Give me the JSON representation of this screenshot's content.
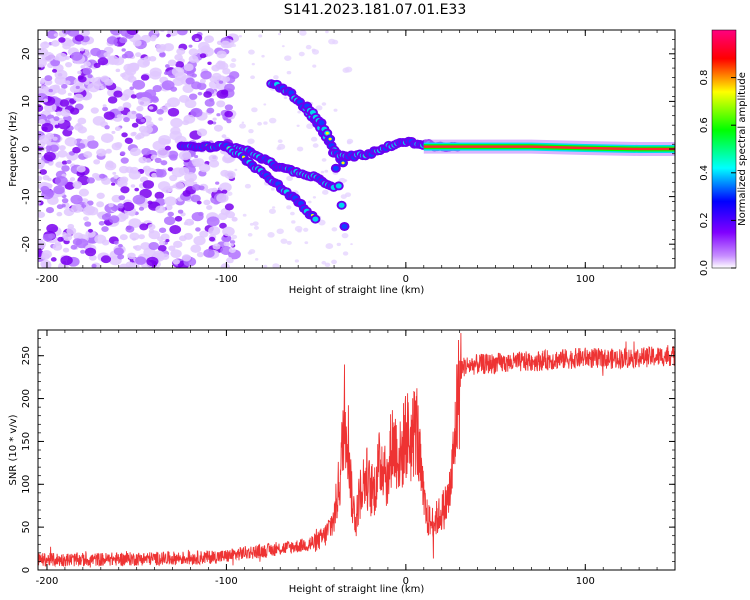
{
  "title": "S141.2023.181.07.01.E33",
  "chart_data": [
    {
      "type": "heatmap",
      "xlabel": "Height of straight line (km)",
      "ylabel": "Frequency (Hz)",
      "xlim": [
        -205,
        150
      ],
      "ylim": [
        -25,
        25
      ],
      "xticks": [
        -200,
        -100,
        0,
        100
      ],
      "yticks": [
        -20,
        -10,
        0,
        10,
        20
      ],
      "colorbar": {
        "label": "Normalized spectral amplitude",
        "range": [
          0,
          1
        ],
        "ticks": [
          "0.0",
          "0.2",
          "0.4",
          "0.6",
          "0.8"
        ],
        "colors": [
          "#ffffff",
          "#8000ff",
          "#0000ff",
          "#00ffff",
          "#00ff00",
          "#ffff00",
          "#ff0000",
          "#ff0080"
        ]
      },
      "ridges": [
        {
          "x": [
            -125,
            -110,
            -100,
            -90,
            -80,
            -70,
            -60,
            -50,
            -40
          ],
          "y": [
            0.5,
            0.5,
            0.5,
            0,
            -2,
            -4,
            -5,
            -6,
            -8
          ]
        },
        {
          "x": [
            -100,
            -90,
            -80,
            -70,
            -60,
            -50
          ],
          "y": [
            0.5,
            -2,
            -5,
            -8,
            -11,
            -15
          ]
        },
        {
          "x": [
            -75,
            -65,
            -55,
            -45,
            -35
          ],
          "y": [
            14,
            12,
            8,
            3,
            -3
          ]
        },
        {
          "x": [
            -55,
            -48,
            -42,
            -38,
            -35,
            -33
          ],
          "y": [
            9,
            6,
            2,
            -6,
            -14,
            -20
          ]
        },
        {
          "x": [
            -40,
            -30,
            -20,
            -10,
            0,
            10,
            20,
            30
          ],
          "y": [
            -1,
            -1.5,
            -1,
            0.5,
            1.5,
            1,
            0.5,
            0.5
          ]
        },
        {
          "x": [
            10,
            40,
            70,
            100,
            130,
            150
          ],
          "y": [
            0.5,
            0.5,
            0.5,
            0.2,
            0,
            0
          ]
        }
      ]
    },
    {
      "type": "line",
      "xlabel": "Height of straight line (km)",
      "ylabel": "SNR (10 * v/v)",
      "xlim": [
        -205,
        150
      ],
      "ylim": [
        0,
        280
      ],
      "xticks": [
        -200,
        -100,
        0,
        100
      ],
      "yticks": [
        0,
        50,
        100,
        150,
        200,
        250
      ],
      "color": "#ee3333",
      "x": [
        -205,
        -180,
        -150,
        -120,
        -100,
        -90,
        -80,
        -70,
        -60,
        -50,
        -45,
        -40,
        -36,
        -34,
        -32,
        -30,
        -28,
        -25,
        -22,
        -20,
        -18,
        -15,
        -12,
        -10,
        -8,
        -5,
        -3,
        0,
        3,
        6,
        8,
        10,
        12,
        14,
        16,
        18,
        20,
        22,
        24,
        25,
        27,
        28,
        29,
        30,
        31,
        33,
        40,
        60,
        80,
        95,
        100,
        110,
        130,
        150
      ],
      "y": [
        12,
        12,
        13,
        14,
        16,
        20,
        22,
        25,
        28,
        32,
        40,
        60,
        120,
        200,
        150,
        80,
        60,
        95,
        110,
        95,
        90,
        120,
        130,
        100,
        150,
        140,
        130,
        160,
        150,
        170,
        120,
        80,
        60,
        55,
        58,
        62,
        68,
        75,
        85,
        100,
        140,
        180,
        200,
        215,
        235,
        238,
        240,
        242,
        245,
        247,
        248,
        246,
        248,
        250
      ]
    }
  ]
}
